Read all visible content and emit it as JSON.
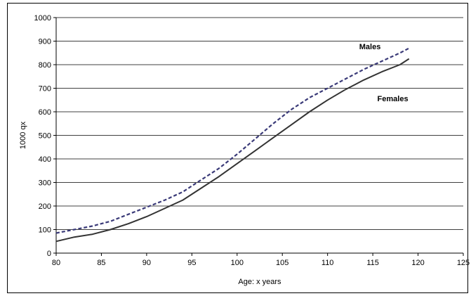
{
  "chart_data": {
    "type": "line",
    "title": "",
    "xlabel": "Age: x years",
    "ylabel": "1000 qx",
    "xlim": [
      80,
      125
    ],
    "ylim": [
      0,
      1000
    ],
    "xticks": [
      80,
      85,
      90,
      95,
      100,
      105,
      110,
      115,
      120,
      125
    ],
    "yticks": [
      0,
      100,
      200,
      300,
      400,
      500,
      600,
      700,
      800,
      900,
      1000
    ],
    "grid": "horizontal",
    "legend": "none",
    "series": [
      {
        "name": "Males",
        "color": "#3a3a78",
        "style": "dashed",
        "x": [
          80,
          82,
          84,
          86,
          88,
          90,
          92,
          94,
          96,
          98,
          100,
          102,
          104,
          106,
          108,
          110,
          112,
          114,
          116,
          118,
          119
        ],
        "y": [
          85,
          100,
          115,
          135,
          165,
          195,
          225,
          260,
          310,
          360,
          420,
          485,
          550,
          610,
          660,
          700,
          740,
          780,
          815,
          850,
          870
        ]
      },
      {
        "name": "Females",
        "color": "#333333",
        "style": "solid",
        "x": [
          80,
          82,
          84,
          86,
          88,
          90,
          92,
          94,
          96,
          98,
          100,
          102,
          104,
          106,
          108,
          110,
          112,
          114,
          116,
          118,
          119
        ],
        "y": [
          50,
          68,
          80,
          100,
          125,
          155,
          190,
          225,
          275,
          325,
          380,
          435,
          490,
          545,
          600,
          650,
          695,
          735,
          770,
          800,
          825
        ]
      }
    ],
    "annotations": [
      {
        "text": "Males",
        "x": 113.5,
        "y": 865
      },
      {
        "text": "Females",
        "x": 115.5,
        "y": 645
      }
    ]
  }
}
